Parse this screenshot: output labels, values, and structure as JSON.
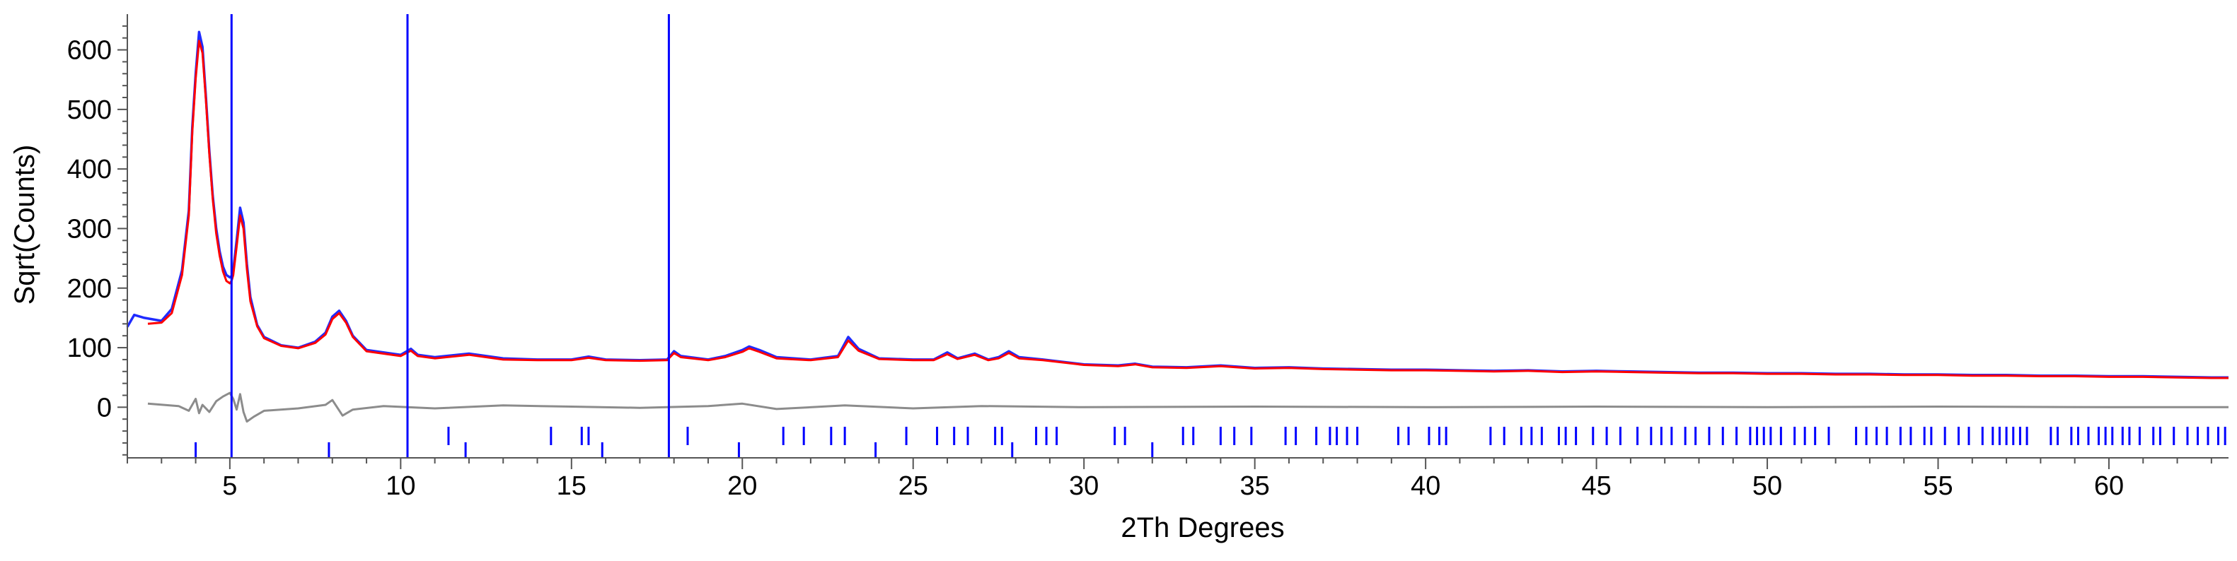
{
  "chart_data": {
    "type": "line",
    "title": "",
    "xlabel": "2Th Degrees",
    "ylabel": "Sqrt(Counts)",
    "xlim": [
      2.0,
      63.5
    ],
    "ylim": [
      -85,
      660
    ],
    "x_ticks": [
      5,
      10,
      15,
      20,
      25,
      30,
      35,
      40,
      45,
      50,
      55,
      60
    ],
    "y_ticks": [
      0,
      100,
      200,
      300,
      400,
      500,
      600
    ],
    "grid": false,
    "legend": "none",
    "colors": {
      "observed": "#1f2bff",
      "calculated": "#ff0000",
      "difference": "#8c8c8c",
      "markers": "#0000ff"
    },
    "vertical_lines_x": [
      5.05,
      10.2,
      17.85
    ],
    "series": [
      {
        "role": "observed",
        "x": [
          2.0,
          2.2,
          2.5,
          3.0,
          3.3,
          3.6,
          3.8,
          3.9,
          4.0,
          4.1,
          4.2,
          4.3,
          4.4,
          4.5,
          4.6,
          4.7,
          4.8,
          4.9,
          5.0,
          5.05,
          5.1,
          5.2,
          5.3,
          5.4,
          5.5,
          5.6,
          5.8,
          6.0,
          6.5,
          7.0,
          7.5,
          7.8,
          8.0,
          8.2,
          8.4,
          8.6,
          9.0,
          10.0,
          10.3,
          10.5,
          11.0,
          12.0,
          12.5,
          13.0,
          14.0,
          15.0,
          15.5,
          16.0,
          17.0,
          17.8,
          18.0,
          18.2,
          19.0,
          19.5,
          20.0,
          20.2,
          20.5,
          21.0,
          22.0,
          22.8,
          23.1,
          23.4,
          24.0,
          25.0,
          25.6,
          26.0,
          26.3,
          26.8,
          27.2,
          27.5,
          27.8,
          28.1,
          28.8,
          30.0,
          31.0,
          31.5,
          32.0,
          33.0,
          34.0,
          35.0,
          36.0,
          37.0,
          38.0,
          39.0,
          40.0,
          41.0,
          42.0,
          43.0,
          44.0,
          45.0,
          46.0,
          47.0,
          48.0,
          49.0,
          50.0,
          51.0,
          52.0,
          53.0,
          54.0,
          55.0,
          56.0,
          57.0,
          58.0,
          59.0,
          60.0,
          61.0,
          62.0,
          63.0,
          63.5
        ],
        "y": [
          135,
          155,
          150,
          145,
          165,
          230,
          330,
          470,
          560,
          630,
          605,
          520,
          430,
          355,
          300,
          262,
          236,
          222,
          218,
          220,
          230,
          280,
          335,
          310,
          240,
          185,
          138,
          118,
          104,
          100,
          110,
          125,
          152,
          162,
          145,
          120,
          96,
          88,
          98,
          88,
          84,
          90,
          86,
          82,
          80,
          80,
          85,
          80,
          79,
          80,
          94,
          86,
          80,
          86,
          96,
          102,
          96,
          84,
          80,
          86,
          118,
          98,
          82,
          80,
          80,
          92,
          82,
          90,
          80,
          84,
          94,
          84,
          80,
          72,
          70,
          73,
          68,
          67,
          70,
          66,
          67,
          65,
          64,
          63,
          63,
          62,
          61,
          62,
          60,
          61,
          60,
          59,
          58,
          58,
          57,
          57,
          56,
          56,
          55,
          55,
          54,
          54,
          53,
          53,
          52,
          52,
          51,
          50,
          50
        ]
      },
      {
        "role": "calculated",
        "x": [
          2.6,
          3.0,
          3.3,
          3.6,
          3.8,
          3.9,
          4.0,
          4.1,
          4.2,
          4.3,
          4.4,
          4.5,
          4.6,
          4.7,
          4.8,
          4.9,
          5.0,
          5.05,
          5.1,
          5.2,
          5.3,
          5.4,
          5.5,
          5.6,
          5.8,
          6.0,
          6.5,
          7.0,
          7.5,
          7.8,
          8.0,
          8.2,
          8.4,
          8.6,
          9.0,
          10.0,
          10.3,
          10.5,
          11.0,
          12.0,
          12.5,
          13.0,
          14.0,
          15.0,
          15.5,
          16.0,
          17.0,
          17.8,
          18.0,
          18.2,
          19.0,
          19.5,
          20.0,
          20.2,
          20.5,
          21.0,
          22.0,
          22.8,
          23.1,
          23.4,
          24.0,
          25.0,
          25.6,
          26.0,
          26.3,
          26.8,
          27.2,
          27.5,
          27.8,
          28.1,
          28.8,
          30.0,
          31.0,
          31.5,
          32.0,
          33.0,
          34.0,
          35.0,
          36.0,
          37.0,
          38.0,
          39.0,
          40.0,
          41.0,
          42.0,
          43.0,
          44.0,
          45.0,
          46.0,
          47.0,
          48.0,
          49.0,
          50.0,
          51.0,
          52.0,
          53.0,
          54.0,
          55.0,
          56.0,
          57.0,
          58.0,
          59.0,
          60.0,
          61.0,
          62.0,
          63.0,
          63.5
        ],
        "y": [
          140,
          142,
          158,
          222,
          322,
          462,
          552,
          615,
          595,
          515,
          425,
          350,
          292,
          255,
          228,
          212,
          208,
          212,
          222,
          270,
          322,
          300,
          232,
          178,
          136,
          116,
          103,
          99,
          108,
          122,
          148,
          158,
          142,
          118,
          94,
          86,
          95,
          86,
          82,
          88,
          84,
          80,
          79,
          79,
          83,
          79,
          78,
          79,
          91,
          84,
          79,
          84,
          93,
          99,
          93,
          82,
          79,
          84,
          112,
          95,
          81,
          79,
          79,
          89,
          81,
          88,
          79,
          82,
          91,
          82,
          79,
          71,
          69,
          72,
          67,
          66,
          69,
          65,
          66,
          64,
          63,
          62,
          62,
          61,
          60,
          61,
          59,
          60,
          59,
          58,
          57,
          57,
          56,
          56,
          55,
          55,
          54,
          54,
          53,
          53,
          52,
          52,
          51,
          51,
          50,
          49,
          49
        ]
      },
      {
        "role": "difference",
        "x": [
          2.6,
          3.5,
          3.8,
          4.0,
          4.1,
          4.2,
          4.4,
          4.6,
          4.8,
          5.0,
          5.1,
          5.2,
          5.3,
          5.4,
          5.5,
          5.7,
          6.0,
          7.0,
          7.8,
          8.0,
          8.3,
          8.6,
          9.5,
          11,
          13,
          15,
          17,
          19,
          20,
          21,
          23,
          25,
          27,
          30,
          35,
          40,
          45,
          50,
          55,
          60,
          63.5
        ],
        "y": [
          6,
          2,
          -6,
          14,
          -10,
          4,
          -8,
          10,
          18,
          24,
          14,
          -4,
          22,
          -8,
          -24,
          -16,
          -6,
          -2,
          4,
          12,
          -14,
          -4,
          2,
          -2,
          3,
          1,
          -1,
          2,
          6,
          -3,
          3,
          -2,
          2,
          0,
          1,
          0,
          1,
          0,
          1,
          0,
          0
        ]
      }
    ],
    "reflection_markers_phase1": [
      11.4,
      14.4,
      15.3,
      15.5,
      18.4,
      21.2,
      21.8,
      22.6,
      23.0,
      24.8,
      25.7,
      26.2,
      26.6,
      27.4,
      27.6,
      28.6,
      28.9,
      29.2,
      30.9,
      31.2,
      32.9,
      33.2,
      34.0,
      34.4,
      34.9,
      35.9,
      36.2,
      36.8,
      37.2,
      37.4,
      37.7,
      38.0,
      39.2,
      39.5,
      40.1,
      40.4,
      40.6,
      41.9,
      42.3,
      42.8,
      43.1,
      43.4,
      43.9,
      44.1,
      44.4,
      44.9,
      45.3,
      45.7,
      46.2,
      46.6,
      46.9,
      47.2,
      47.6,
      47.9,
      48.3,
      48.7,
      49.1,
      49.5,
      49.7,
      49.9,
      50.1,
      50.4,
      50.8,
      51.1,
      51.4,
      51.8,
      52.6,
      52.9,
      53.2,
      53.5,
      53.9,
      54.2,
      54.6,
      54.8,
      55.2,
      55.6,
      55.9,
      56.3,
      56.6,
      56.8,
      57.0,
      57.2,
      57.4,
      57.6,
      58.3,
      58.5,
      58.9,
      59.1,
      59.4,
      59.7,
      59.9,
      60.1,
      60.4,
      60.6,
      60.9,
      61.3,
      61.5,
      61.9,
      62.3,
      62.6,
      62.9,
      63.2,
      63.4
    ],
    "reflection_markers_phase2": [
      4.0,
      7.9,
      11.9,
      15.9,
      19.9,
      23.9,
      27.9,
      32.0
    ]
  }
}
